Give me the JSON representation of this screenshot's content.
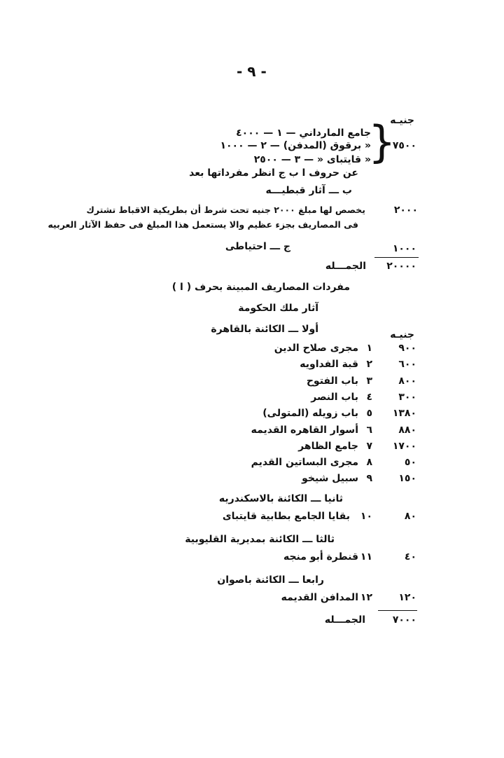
{
  "page_number": "- ٩ -",
  "currency_header": "جنيـه",
  "top_block": {
    "bracket_items": [
      {
        "amount": "٤٠٠٠",
        "num": "١",
        "name": "جامع المارداني"
      },
      {
        "amount": "١٠٠٠",
        "num": "٢",
        "name": "« برقوق (المدفن)"
      },
      {
        "amount": "٢٥٠٠",
        "num": "٣",
        "name": "« قايتباى «"
      }
    ],
    "bracket_total": "٧٥٠٠",
    "note_letters": "عن حروف ا ب ج انظر مفرداتها بعد",
    "section_b": "ب ـــ آثار قبطيـــه",
    "section_b_amount": "٢٠٠٠",
    "section_b_line1": "يخصص لها مبلغ ٢٠٠٠ جنيه تحت شرط أن بطريكية الاقباط تشترك",
    "section_b_line2": "فى المصاريف بجزء عظيم والا يستعمل هذا المبلغ فى حفظ الآثار العربيه",
    "section_c": "ج ـــ احتياطى",
    "section_c_amount": "١٠٠٠",
    "total_label": "الجمـــله",
    "total_amount": "٢٠٠٠٠"
  },
  "details": {
    "title": "مفردات المصاريف المبينة بحرف ( ا )",
    "subtitle": "آثار ملك الحكومة",
    "currency_header": "جنيـه",
    "groups": [
      {
        "heading": "أولا ـــ الكائنة بالقاهرة",
        "items": [
          {
            "num": "١",
            "name": "مجرى صلاح الدين",
            "amount": "٩٠٠"
          },
          {
            "num": "٢",
            "name": "قبة الفداويه",
            "amount": "٦٠٠"
          },
          {
            "num": "٣",
            "name": "باب الفتوح",
            "amount": "٨٠٠"
          },
          {
            "num": "٤",
            "name": "باب النصر",
            "amount": "٣٠٠"
          },
          {
            "num": "٥",
            "name": "باب زويله (المتولى)",
            "amount": "١٣٨٠"
          },
          {
            "num": "٦",
            "name": "أسوار القاهره القديمه",
            "amount": "٨٨٠"
          },
          {
            "num": "٧",
            "name": "جامع الظاهر",
            "amount": "١٧٠٠"
          },
          {
            "num": "٨",
            "name": "مجرى البساتين القديم",
            "amount": "٥٠"
          },
          {
            "num": "٩",
            "name": "سبيل شيخو",
            "amount": "١٥٠"
          }
        ]
      },
      {
        "heading": "ثانيا ـــ الكائنة بالاسكندريه",
        "items": [
          {
            "num": "١٠",
            "name": "بقايا الجامع بطابية قايتباى",
            "amount": "٨٠"
          }
        ]
      },
      {
        "heading": "ثالثا ـــ الكائنة بمديرية القليوبية",
        "items": [
          {
            "num": "١١",
            "name": "قنطرة أبو منجه",
            "amount": "٤٠"
          }
        ]
      },
      {
        "heading": "رابعا ـــ الكائنة باصوان",
        "items": [
          {
            "num": "١٢",
            "name": "المدافن القديمه",
            "amount": "١٢٠"
          }
        ]
      }
    ],
    "total_label": "الجمـــله",
    "total_amount": "٧٠٠٠"
  }
}
